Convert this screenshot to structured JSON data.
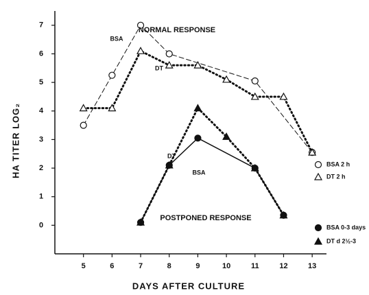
{
  "chart_data": {
    "type": "line",
    "xlabel": "DAYS AFTER CULTURE",
    "ylabel": "HA TITER LOG₂",
    "xlim": [
      4,
      13.5
    ],
    "ylim": [
      -1,
      7.5
    ],
    "xticks": [
      5,
      6,
      7,
      8,
      9,
      10,
      11,
      12,
      13
    ],
    "yticks": [
      0,
      1,
      2,
      3,
      4,
      5,
      6,
      7
    ],
    "annotations": [
      "NORMAL RESPONSE",
      "POSTPONED RESPONSE",
      "BSA",
      "DT",
      "DT",
      "BSA"
    ],
    "series": [
      {
        "name": "BSA 2 h",
        "color": "#111",
        "marker": "open-circle",
        "line": "dashed",
        "x": [
          5,
          6,
          7,
          8,
          11,
          13
        ],
        "values": [
          3.5,
          5.25,
          7.0,
          6.0,
          5.05,
          2.55
        ]
      },
      {
        "name": "DT 2 h",
        "color": "#111",
        "marker": "open-triangle",
        "line": "dotted",
        "x": [
          5,
          6,
          7,
          8,
          9,
          10,
          11,
          12,
          13
        ],
        "values": [
          4.1,
          4.1,
          6.1,
          5.6,
          5.6,
          5.1,
          4.5,
          4.5,
          2.55
        ]
      },
      {
        "name": "BSA 0-3 days",
        "color": "#111",
        "marker": "filled-circle",
        "line": "solid",
        "x": [
          7,
          8,
          9,
          11,
          12
        ],
        "values": [
          0.1,
          2.1,
          3.05,
          2.0,
          0.35
        ]
      },
      {
        "name": "DT d 2½-3",
        "color": "#111",
        "marker": "filled-triangle",
        "line": "dotted",
        "x": [
          7,
          8,
          9,
          10,
          11,
          12
        ],
        "values": [
          0.1,
          2.1,
          4.1,
          3.1,
          2.0,
          0.35
        ]
      }
    ]
  }
}
